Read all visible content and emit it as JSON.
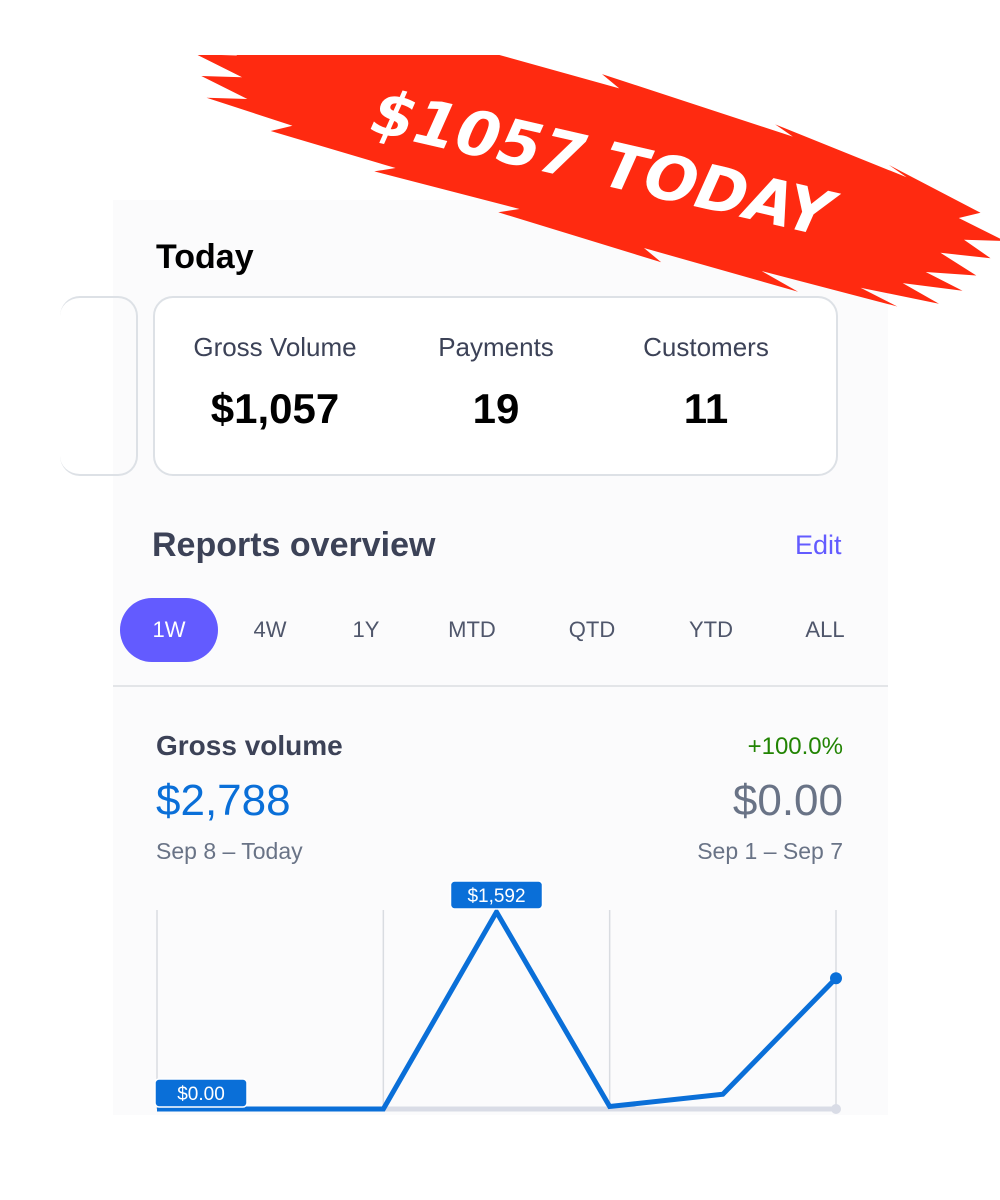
{
  "banner": {
    "text": "$1057 TODAY",
    "color": "#ff2a10"
  },
  "today": {
    "title": "Today",
    "stats": [
      {
        "label": "Gross Volume",
        "value": "$1,057"
      },
      {
        "label": "Payments",
        "value": "19"
      },
      {
        "label": "Customers",
        "value": "11"
      }
    ]
  },
  "reports": {
    "title": "Reports overview",
    "edit_label": "Edit",
    "tabs": [
      "1W",
      "4W",
      "1Y",
      "MTD",
      "QTD",
      "YTD",
      "ALL"
    ],
    "active_tab": "1W"
  },
  "gross_volume": {
    "label": "Gross volume",
    "value": "$2,788",
    "range": "Sep 8 – Today",
    "change": "+100.0%",
    "previous_value": "$0.00",
    "previous_range": "Sep 1 – Sep 7"
  },
  "colors": {
    "accent": "#635bff",
    "line": "#0a6fd8",
    "positive": "#228403"
  },
  "chart_data": {
    "type": "line",
    "values": [
      0,
      0,
      0,
      1592,
      20,
      119,
      1057
    ],
    "annotations": [
      {
        "index": 0,
        "label": "$0.00"
      },
      {
        "index": 3,
        "label": "$1,592"
      }
    ],
    "ylim": [
      0,
      1592
    ],
    "grid": "vertical"
  }
}
